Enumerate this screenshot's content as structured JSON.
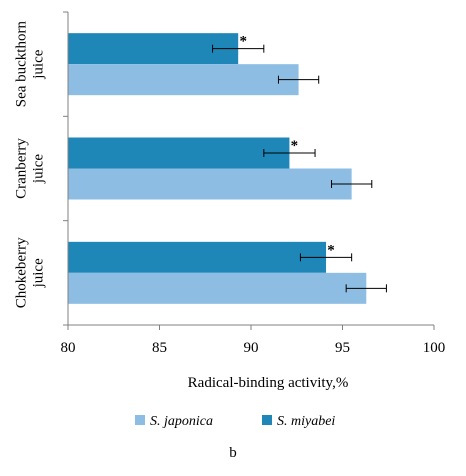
{
  "chart_data": {
    "type": "bar",
    "orientation": "horizontal",
    "categories": [
      [
        "Sea buckthorn",
        "juice"
      ],
      [
        "Cranberry",
        "juice"
      ],
      [
        "Chokeberry",
        "juice"
      ]
    ],
    "series": [
      {
        "name": "S. miyabei",
        "color": "#1f87b8",
        "values": [
          89.3,
          92.1,
          94.1
        ],
        "errors": [
          1.4,
          1.4,
          1.4
        ],
        "annotations": [
          "*",
          "*",
          "*"
        ]
      },
      {
        "name": "S. japonica",
        "color": "#8ebde3",
        "values": [
          92.6,
          95.5,
          96.3
        ],
        "errors": [
          1.1,
          1.1,
          1.1
        ],
        "annotations": [
          "",
          "",
          ""
        ]
      }
    ],
    "xlabel": "Radical-binding activity,%",
    "xlim": [
      80,
      100
    ],
    "xticks": [
      80,
      85,
      90,
      95,
      100
    ],
    "grid": false,
    "legend": {
      "position": "bottom",
      "order": [
        "S. japonica",
        "S. miyabei"
      ]
    },
    "panel_label": "b"
  }
}
